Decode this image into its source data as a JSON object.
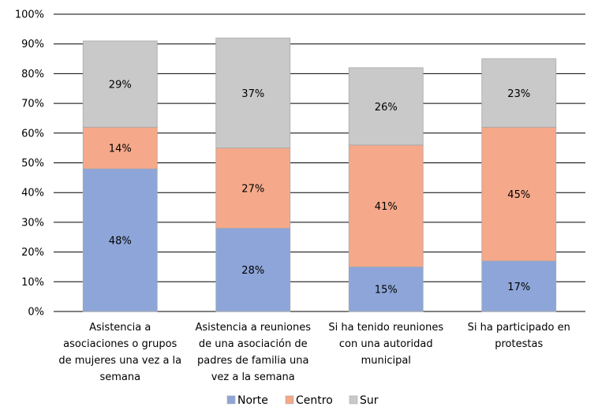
{
  "chart_data": {
    "type": "bar",
    "stacked": true,
    "title": "",
    "xlabel": "",
    "ylabel": "",
    "ylim": [
      0,
      100
    ],
    "yticks": [
      "0%",
      "10%",
      "20%",
      "30%",
      "40%",
      "50%",
      "60%",
      "70%",
      "80%",
      "90%",
      "100%"
    ],
    "grid": true,
    "legend": "bottom",
    "categories": [
      [
        "Asistencia a",
        "asociaciones o grupos",
        "de mujeres una vez a la",
        "semana"
      ],
      [
        "Asistencia a reuniones",
        "de una asociación de",
        "padres de familia una",
        "vez a la semana"
      ],
      [
        "Si ha tenido reuniones",
        "con una autoridad",
        "municipal"
      ],
      [
        "Si ha participado en",
        "protestas"
      ]
    ],
    "series": [
      {
        "name": "Norte",
        "values": [
          48,
          28,
          15,
          17
        ],
        "labels": [
          "48%",
          "28%",
          "15%",
          "17%"
        ],
        "color": "#8EA5D9"
      },
      {
        "name": "Centro",
        "values": [
          14,
          27,
          41,
          45
        ],
        "labels": [
          "14%",
          "27%",
          "41%",
          "45%"
        ],
        "color": "#F5A98A"
      },
      {
        "name": "Sur",
        "values": [
          29,
          37,
          26,
          23
        ],
        "labels": [
          "29%",
          "37%",
          "26%",
          "23%"
        ],
        "color": "#C9C9C9"
      }
    ]
  }
}
